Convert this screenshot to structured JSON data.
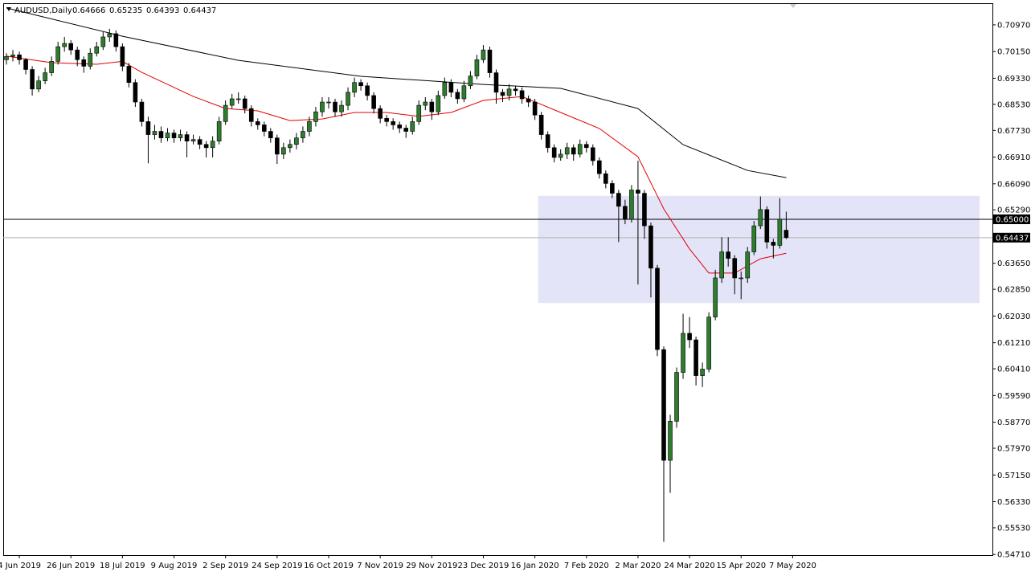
{
  "chart_data": {
    "type": "candlestick",
    "symbol": "AUDUSD,Daily",
    "ohlc_labels": [
      "0.64666",
      "0.65235",
      "0.64393",
      "0.64437"
    ],
    "xlim": [
      -0.5,
      153
    ],
    "ylim": [
      0.5469,
      0.7161
    ],
    "xticks": [
      {
        "value": 2,
        "label": "4 Jun 2019"
      },
      {
        "value": 10,
        "label": "26 Jun 2019"
      },
      {
        "value": 18,
        "label": "18 Jul 2019"
      },
      {
        "value": 26,
        "label": "9 Aug 2019"
      },
      {
        "value": 34,
        "label": "2 Sep 2019"
      },
      {
        "value": 42,
        "label": "24 Sep 2019"
      },
      {
        "value": 50,
        "label": "16 Oct 2019"
      },
      {
        "value": 58,
        "label": "7 Nov 2019"
      },
      {
        "value": 66,
        "label": "29 Nov 2019"
      },
      {
        "value": 74,
        "label": "23 Dec 2019"
      },
      {
        "value": 82,
        "label": "16 Jan 2020"
      },
      {
        "value": 90,
        "label": "7 Feb 2020"
      },
      {
        "value": 98,
        "label": "2 Mar 2020"
      },
      {
        "value": 106,
        "label": "24 Mar 2020"
      },
      {
        "value": 114,
        "label": "15 Apr 2020"
      },
      {
        "value": 122,
        "label": "7 May 2020"
      }
    ],
    "yticks": [
      {
        "value": 0.7097,
        "label": "0.70970"
      },
      {
        "value": 0.7015,
        "label": "0.70150"
      },
      {
        "value": 0.6933,
        "label": "0.69330"
      },
      {
        "value": 0.6853,
        "label": "0.68530"
      },
      {
        "value": 0.6773,
        "label": "0.67730"
      },
      {
        "value": 0.6691,
        "label": "0.66910"
      },
      {
        "value": 0.6609,
        "label": "0.66090"
      },
      {
        "value": 0.6529,
        "label": "0.65290"
      },
      {
        "value": 0.6365,
        "label": "0.63650"
      },
      {
        "value": 0.6285,
        "label": "0.62850"
      },
      {
        "value": 0.6203,
        "label": "0.62030"
      },
      {
        "value": 0.6121,
        "label": "0.61210"
      },
      {
        "value": 0.6041,
        "label": "0.60410"
      },
      {
        "value": 0.5959,
        "label": "0.59590"
      },
      {
        "value": 0.5877,
        "label": "0.58770"
      },
      {
        "value": 0.5797,
        "label": "0.57970"
      },
      {
        "value": 0.5715,
        "label": "0.57150"
      },
      {
        "value": 0.5633,
        "label": "0.56330"
      },
      {
        "value": 0.5553,
        "label": "0.55530"
      },
      {
        "value": 0.5471,
        "label": "0.54710"
      }
    ],
    "bull_color": "#2e7d2e",
    "bear_color": "#000000",
    "candles": [
      [
        0.699,
        0.701,
        0.6975,
        0.7
      ],
      [
        0.7,
        0.702,
        0.6985,
        0.7005
      ],
      [
        0.7005,
        0.7015,
        0.6975,
        0.699
      ],
      [
        0.699,
        0.6995,
        0.6945,
        0.696
      ],
      [
        0.696,
        0.697,
        0.688,
        0.69
      ],
      [
        0.69,
        0.694,
        0.689,
        0.6925
      ],
      [
        0.6925,
        0.6965,
        0.6915,
        0.695
      ],
      [
        0.695,
        0.7,
        0.694,
        0.6985
      ],
      [
        0.6985,
        0.7045,
        0.6975,
        0.703
      ],
      [
        0.703,
        0.706,
        0.7015,
        0.704
      ],
      [
        0.704,
        0.705,
        0.7005,
        0.702
      ],
      [
        0.702,
        0.703,
        0.697,
        0.699
      ],
      [
        0.699,
        0.7,
        0.695,
        0.697
      ],
      [
        0.697,
        0.7025,
        0.696,
        0.701
      ],
      [
        0.701,
        0.7045,
        0.7,
        0.703
      ],
      [
        0.703,
        0.7075,
        0.702,
        0.706
      ],
      [
        0.706,
        0.7085,
        0.7045,
        0.707
      ],
      [
        0.707,
        0.708,
        0.7015,
        0.703
      ],
      [
        0.703,
        0.704,
        0.6955,
        0.697
      ],
      [
        0.697,
        0.698,
        0.6905,
        0.692
      ],
      [
        0.692,
        0.693,
        0.6845,
        0.686
      ],
      [
        0.686,
        0.687,
        0.6785,
        0.68
      ],
      [
        0.68,
        0.6815,
        0.6672,
        0.676
      ],
      [
        0.676,
        0.679,
        0.6745,
        0.677
      ],
      [
        0.677,
        0.6785,
        0.6735,
        0.675
      ],
      [
        0.675,
        0.678,
        0.674,
        0.6765
      ],
      [
        0.6765,
        0.6775,
        0.6735,
        0.675
      ],
      [
        0.675,
        0.6775,
        0.674,
        0.676
      ],
      [
        0.676,
        0.677,
        0.669,
        0.674
      ],
      [
        0.674,
        0.676,
        0.673,
        0.6745
      ],
      [
        0.6745,
        0.6755,
        0.6715,
        0.673
      ],
      [
        0.673,
        0.674,
        0.669,
        0.672
      ],
      [
        0.672,
        0.6755,
        0.669,
        0.674
      ],
      [
        0.674,
        0.6815,
        0.673,
        0.68
      ],
      [
        0.68,
        0.6865,
        0.679,
        0.685
      ],
      [
        0.685,
        0.6885,
        0.684,
        0.687
      ],
      [
        0.687,
        0.689,
        0.6855,
        0.687
      ],
      [
        0.687,
        0.688,
        0.6825,
        0.684
      ],
      [
        0.684,
        0.685,
        0.6785,
        0.68
      ],
      [
        0.68,
        0.681,
        0.6775,
        0.679
      ],
      [
        0.679,
        0.68,
        0.6755,
        0.677
      ],
      [
        0.677,
        0.678,
        0.6735,
        0.675
      ],
      [
        0.675,
        0.676,
        0.667,
        0.67
      ],
      [
        0.67,
        0.6735,
        0.6685,
        0.672
      ],
      [
        0.672,
        0.6745,
        0.6705,
        0.673
      ],
      [
        0.673,
        0.6765,
        0.6715,
        0.675
      ],
      [
        0.675,
        0.6785,
        0.6735,
        0.677
      ],
      [
        0.677,
        0.6815,
        0.6755,
        0.68
      ],
      [
        0.68,
        0.6845,
        0.6785,
        0.683
      ],
      [
        0.683,
        0.6875,
        0.6815,
        0.686
      ],
      [
        0.686,
        0.6875,
        0.684,
        0.686
      ],
      [
        0.686,
        0.687,
        0.6815,
        0.683
      ],
      [
        0.683,
        0.6865,
        0.6815,
        0.685
      ],
      [
        0.685,
        0.6905,
        0.6835,
        0.689
      ],
      [
        0.689,
        0.6935,
        0.6875,
        0.692
      ],
      [
        0.692,
        0.693,
        0.6895,
        0.691
      ],
      [
        0.691,
        0.692,
        0.6865,
        0.688
      ],
      [
        0.688,
        0.689,
        0.6825,
        0.684
      ],
      [
        0.684,
        0.685,
        0.6795,
        0.681
      ],
      [
        0.681,
        0.682,
        0.6785,
        0.68
      ],
      [
        0.68,
        0.681,
        0.6775,
        0.679
      ],
      [
        0.679,
        0.68,
        0.6765,
        0.678
      ],
      [
        0.678,
        0.679,
        0.675,
        0.677
      ],
      [
        0.677,
        0.6815,
        0.676,
        0.68
      ],
      [
        0.68,
        0.6865,
        0.679,
        0.685
      ],
      [
        0.685,
        0.6875,
        0.6835,
        0.686
      ],
      [
        0.686,
        0.687,
        0.6805,
        0.683
      ],
      [
        0.683,
        0.6895,
        0.682,
        0.688
      ],
      [
        0.688,
        0.6935,
        0.687,
        0.692
      ],
      [
        0.692,
        0.693,
        0.6875,
        0.689
      ],
      [
        0.689,
        0.69,
        0.6855,
        0.687
      ],
      [
        0.687,
        0.6925,
        0.686,
        0.691
      ],
      [
        0.691,
        0.6955,
        0.69,
        0.694
      ],
      [
        0.694,
        0.7005,
        0.693,
        0.699
      ],
      [
        0.699,
        0.7035,
        0.698,
        0.702
      ],
      [
        0.702,
        0.703,
        0.6935,
        0.695
      ],
      [
        0.695,
        0.696,
        0.6855,
        0.689
      ],
      [
        0.689,
        0.69,
        0.686,
        0.688
      ],
      [
        0.688,
        0.6915,
        0.6865,
        0.69
      ],
      [
        0.69,
        0.691,
        0.688,
        0.6895
      ],
      [
        0.6895,
        0.6905,
        0.6855,
        0.687
      ],
      [
        0.687,
        0.688,
        0.6845,
        0.686
      ],
      [
        0.686,
        0.687,
        0.6805,
        0.682
      ],
      [
        0.682,
        0.683,
        0.6745,
        0.676
      ],
      [
        0.676,
        0.677,
        0.6705,
        0.672
      ],
      [
        0.672,
        0.673,
        0.6675,
        0.669
      ],
      [
        0.669,
        0.6715,
        0.668,
        0.67
      ],
      [
        0.67,
        0.6735,
        0.6685,
        0.672
      ],
      [
        0.672,
        0.673,
        0.668,
        0.67
      ],
      [
        0.67,
        0.6745,
        0.669,
        0.673
      ],
      [
        0.673,
        0.674,
        0.6705,
        0.672
      ],
      [
        0.672,
        0.673,
        0.6665,
        0.668
      ],
      [
        0.668,
        0.669,
        0.6625,
        0.664
      ],
      [
        0.664,
        0.665,
        0.6595,
        0.661
      ],
      [
        0.661,
        0.662,
        0.6565,
        0.658
      ],
      [
        0.658,
        0.659,
        0.643,
        0.654
      ],
      [
        0.654,
        0.656,
        0.6485,
        0.65
      ],
      [
        0.65,
        0.6605,
        0.649,
        0.659
      ],
      [
        0.659,
        0.668,
        0.63,
        0.658
      ],
      [
        0.658,
        0.659,
        0.644,
        0.648
      ],
      [
        0.648,
        0.649,
        0.626,
        0.635
      ],
      [
        0.635,
        0.636,
        0.608,
        0.61
      ],
      [
        0.61,
        0.611,
        0.551,
        0.576
      ],
      [
        0.576,
        0.59,
        0.566,
        0.588
      ],
      [
        0.588,
        0.6045,
        0.586,
        0.603
      ],
      [
        0.603,
        0.621,
        0.601,
        0.615
      ],
      [
        0.615,
        0.62,
        0.6105,
        0.613
      ],
      [
        0.613,
        0.614,
        0.599,
        0.602
      ],
      [
        0.602,
        0.606,
        0.5985,
        0.604
      ],
      [
        0.604,
        0.6215,
        0.603,
        0.62
      ],
      [
        0.62,
        0.6345,
        0.619,
        0.632
      ],
      [
        0.632,
        0.6445,
        0.6305,
        0.64
      ],
      [
        0.64,
        0.6445,
        0.6355,
        0.638
      ],
      [
        0.638,
        0.639,
        0.627,
        0.632
      ],
      [
        0.632,
        0.634,
        0.6255,
        0.632
      ],
      [
        0.632,
        0.6415,
        0.6305,
        0.64
      ],
      [
        0.64,
        0.6495,
        0.639,
        0.648
      ],
      [
        0.648,
        0.657,
        0.647,
        0.653
      ],
      [
        0.653,
        0.654,
        0.641,
        0.643
      ],
      [
        0.643,
        0.644,
        0.638,
        0.642
      ],
      [
        0.642,
        0.6565,
        0.641,
        0.65
      ],
      [
        0.64666,
        0.65235,
        0.64393,
        0.64437
      ]
    ],
    "moving_averages": [
      {
        "color": "#000000",
        "x": [
          0,
          18,
          36,
          55,
          74,
          86,
          98,
          105,
          115,
          121
        ],
        "values": [
          0.7149,
          0.7062,
          0.6988,
          0.6939,
          0.6914,
          0.6902,
          0.684,
          0.6729,
          0.665,
          0.6628
        ]
      },
      {
        "color": "#e00000",
        "x": [
          0,
          7,
          14,
          18,
          21,
          29,
          34,
          39,
          44,
          49,
          54,
          59,
          64,
          69,
          74,
          80,
          86,
          92,
          98,
          102,
          106,
          109,
          113,
          117,
          121
        ],
        "values": [
          0.7001,
          0.6981,
          0.6976,
          0.6985,
          0.6951,
          0.6877,
          0.684,
          0.6833,
          0.6803,
          0.6808,
          0.6828,
          0.6828,
          0.6816,
          0.6828,
          0.6865,
          0.6877,
          0.6828,
          0.6779,
          0.6692,
          0.6532,
          0.6409,
          0.6335,
          0.6335,
          0.6379,
          0.6396
        ]
      }
    ],
    "zone": {
      "x": [
        82.5,
        151
      ],
      "y": [
        0.6243,
        0.6572
      ],
      "color": "#e4e4f8"
    },
    "price_lines": [
      {
        "value": 0.65,
        "label": "0.65000",
        "color": "#000000"
      },
      {
        "value": 0.64437,
        "label": "0.64437",
        "color": "#b0b0b0"
      }
    ]
  }
}
